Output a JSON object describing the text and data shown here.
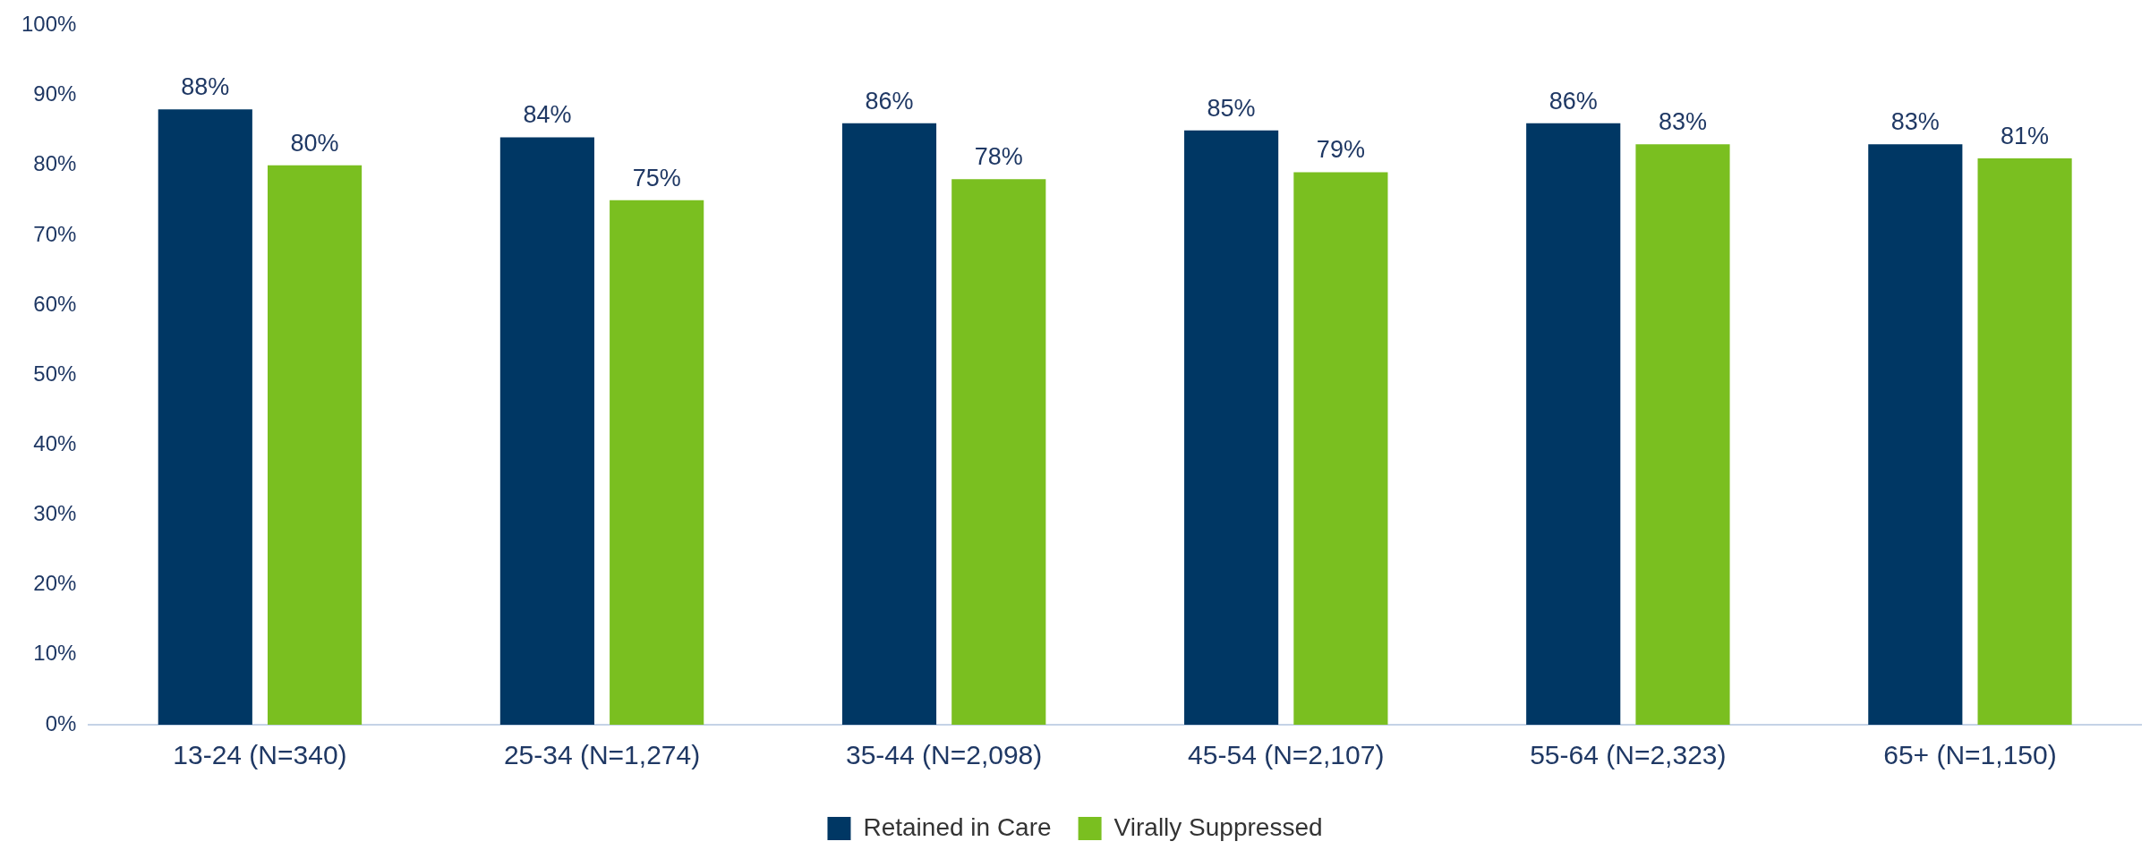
{
  "chart_data": {
    "type": "bar",
    "categories": [
      "13-24 (N=340)",
      "25-34 (N=1,274)",
      "35-44 (N=2,098)",
      "45-54 (N=2,107)",
      "55-64 (N=2,323)",
      "65+ (N=1,150)"
    ],
    "series": [
      {
        "name": "Retained in Care",
        "color": "#003764",
        "values": [
          88,
          84,
          86,
          85,
          86,
          83
        ],
        "value_labels": [
          "88%",
          "84%",
          "86%",
          "85%",
          "86%",
          "83%"
        ]
      },
      {
        "name": "Virally Suppressed",
        "color": "#7abf20",
        "values": [
          80,
          75,
          78,
          79,
          83,
          81
        ],
        "value_labels": [
          "80%",
          "75%",
          "78%",
          "79%",
          "83%",
          "81%"
        ]
      }
    ],
    "ylim": [
      0,
      100
    ],
    "yticks": [
      {
        "value": 0,
        "label": "0%"
      },
      {
        "value": 10,
        "label": "10%"
      },
      {
        "value": 20,
        "label": "20%"
      },
      {
        "value": 30,
        "label": "30%"
      },
      {
        "value": 40,
        "label": "40%"
      },
      {
        "value": 50,
        "label": "50%"
      },
      {
        "value": 60,
        "label": "60%"
      },
      {
        "value": 70,
        "label": "70%"
      },
      {
        "value": 80,
        "label": "80%"
      },
      {
        "value": 90,
        "label": "90%"
      },
      {
        "value": 100,
        "label": "100%"
      }
    ],
    "grid": false,
    "legend": "bottom"
  }
}
